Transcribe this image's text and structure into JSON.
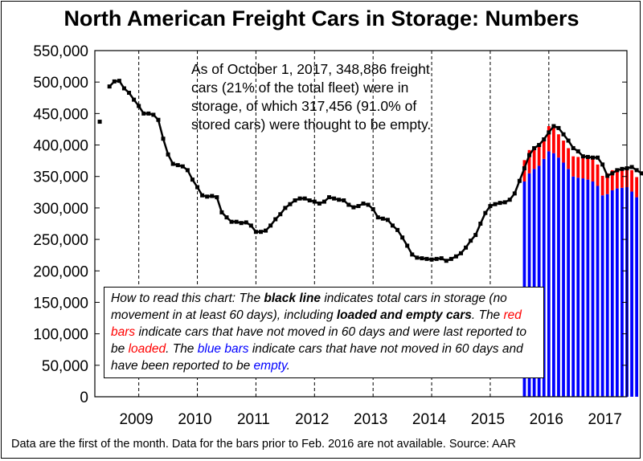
{
  "chart_data": {
    "type": "line",
    "title": "North American Freight Cars in Storage: Numbers",
    "ylim": [
      0,
      550000
    ],
    "yticks": [
      0,
      50000,
      100000,
      150000,
      200000,
      250000,
      300000,
      350000,
      400000,
      450000,
      500000,
      550000
    ],
    "ytick_labels": [
      "0",
      "50,000",
      "100,000",
      "150,000",
      "200,000",
      "250,000",
      "300,000",
      "350,000",
      "400,000",
      "450,000",
      "500,000",
      "550,000"
    ],
    "xlim": [
      "2008-10-01",
      "2017-11-01"
    ],
    "year_labels": [
      "2009",
      "2010",
      "2011",
      "2012",
      "2013",
      "2014",
      "2015",
      "2016",
      "2017"
    ],
    "year_dividers": [
      "2009-07-01",
      "2010-07-01",
      "2011-07-01",
      "2012-07-01",
      "2013-07-01",
      "2014-07-01",
      "2015-07-01",
      "2016-07-01"
    ],
    "grid": "vertical dashed lines at mid-year",
    "total_series": {
      "name": "Total cars in storage",
      "color": "#000000",
      "start": "2008-11-01",
      "values": [
        437000,
        null,
        493000,
        501000,
        502000,
        490000,
        483000,
        472000,
        462000,
        450000,
        450000,
        448000,
        440000,
        410000,
        385000,
        370000,
        368000,
        366000,
        360000,
        345000,
        333000,
        320000,
        318000,
        319000,
        317000,
        293000,
        285000,
        278000,
        278000,
        276000,
        277000,
        272000,
        262000,
        262000,
        264000,
        272000,
        282000,
        290000,
        300000,
        306000,
        312000,
        315000,
        315000,
        312000,
        310000,
        307000,
        310000,
        317000,
        315000,
        313000,
        312000,
        305000,
        301000,
        303000,
        307000,
        305000,
        298000,
        285000,
        283000,
        281000,
        272000,
        265000,
        253000,
        240000,
        226000,
        221000,
        220000,
        219000,
        218000,
        219000,
        220000,
        216000,
        219000,
        223000,
        228000,
        237000,
        248000,
        257000,
        275000,
        292000,
        303000,
        306000,
        308000,
        309000,
        313000,
        323000,
        343000,
        363000,
        384000,
        395000,
        400000,
        409000,
        420000,
        430000,
        427000,
        417000,
        407000,
        395000,
        390000,
        382000,
        381000,
        380000,
        380000,
        369000,
        351000,
        355000,
        360000,
        362000,
        363000,
        365000,
        360000,
        355000,
        349000
      ]
    },
    "bars": {
      "start": "2016-02-01",
      "empty": {
        "name": "empty",
        "color": "#0000ff",
        "values": [
          342000,
          355000,
          362000,
          367000,
          378000,
          390000,
          387000,
          380000,
          372000,
          362000,
          350000,
          348000,
          347000,
          345000,
          342000,
          335000,
          320000,
          322000,
          328000,
          331000,
          332000,
          333000,
          326000,
          317000
        ]
      },
      "loaded": {
        "name": "loaded",
        "color": "#ff0000",
        "values": [
          34000,
          37000,
          33000,
          33000,
          31000,
          40000,
          40000,
          37000,
          35000,
          33000,
          32000,
          33000,
          33000,
          35000,
          38000,
          34000,
          31000,
          33000,
          32000,
          31000,
          31000,
          32000,
          34000,
          32000
        ]
      }
    },
    "callout_lines": [
      "As of October 1, 2017, 348,886 freight",
      "cars (21% of the total fleet) were in",
      "storage, of which 317,456 (91.0% of",
      "stored cars) were thought to be empty."
    ],
    "note": {
      "p1": "How to read this chart:  The ",
      "b1": "black line",
      "p2": " indicates total cars in storage (no movement in at least 60 days), including ",
      "b2": "loaded and empty cars",
      "p3": ".  The ",
      "red_label": "red bars",
      "p4": " indicate cars that have not moved in 60 days and were last reported to be ",
      "loaded_word": "loaded",
      "p5": ".  The ",
      "blue_label": "blue bars",
      "p6": " indicate cars that have not moved in 60 days and have been reported to be ",
      "empty_word": "empty",
      "p7": "."
    },
    "footer": "Data are the first of the month.  Data for the bars prior to Feb. 2016 are not available.  Source: AAR"
  }
}
